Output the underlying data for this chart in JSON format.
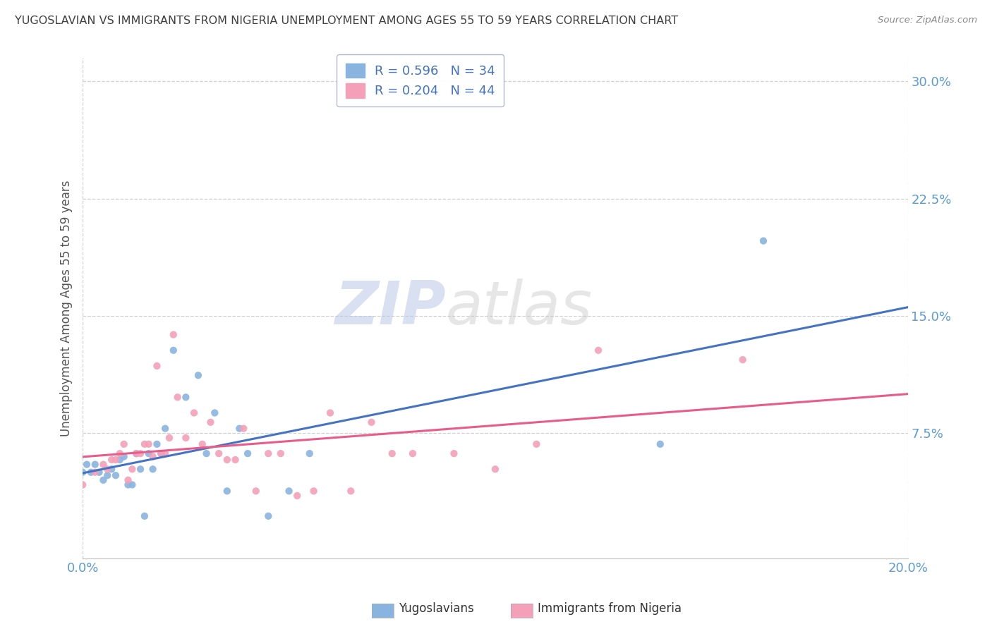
{
  "title": "YUGOSLAVIAN VS IMMIGRANTS FROM NIGERIA UNEMPLOYMENT AMONG AGES 55 TO 59 YEARS CORRELATION CHART",
  "source": "Source: ZipAtlas.com",
  "ylabel": "Unemployment Among Ages 55 to 59 years",
  "xlim": [
    0.0,
    0.2
  ],
  "ylim": [
    -0.005,
    0.315
  ],
  "yticks": [
    0.075,
    0.15,
    0.225,
    0.3
  ],
  "ytick_labels": [
    "7.5%",
    "15.0%",
    "22.5%",
    "30.0%"
  ],
  "xticks": [
    0.0,
    0.2
  ],
  "xtick_labels": [
    "0.0%",
    "20.0%"
  ],
  "series1_name": "Yugoslavians",
  "series1_color": "#8ab4e0",
  "series1_R": 0.596,
  "series1_N": 34,
  "series2_name": "Immigrants from Nigeria",
  "series2_color": "#f4a0b8",
  "series2_R": 0.204,
  "series2_N": 44,
  "line1_color": "#4472c4",
  "line2_color": "#e85c8a",
  "watermark_zip": "ZIP",
  "watermark_atlas": "atlas",
  "background_color": "#ffffff",
  "grid_color": "#d0d0d0",
  "title_color": "#404040",
  "axis_tick_color": "#5b9bd5",
  "series1_x": [
    0.0,
    0.001,
    0.002,
    0.003,
    0.004,
    0.005,
    0.006,
    0.007,
    0.008,
    0.009,
    0.01,
    0.011,
    0.012,
    0.013,
    0.014,
    0.015,
    0.016,
    0.017,
    0.018,
    0.019,
    0.02,
    0.022,
    0.025,
    0.028,
    0.03,
    0.032,
    0.035,
    0.038,
    0.04,
    0.045,
    0.05,
    0.055,
    0.14,
    0.165
  ],
  "series1_y": [
    0.05,
    0.055,
    0.05,
    0.055,
    0.05,
    0.045,
    0.048,
    0.052,
    0.048,
    0.058,
    0.06,
    0.042,
    0.042,
    0.062,
    0.052,
    0.022,
    0.062,
    0.052,
    0.068,
    0.062,
    0.078,
    0.128,
    0.098,
    0.112,
    0.062,
    0.088,
    0.038,
    0.078,
    0.062,
    0.022,
    0.038,
    0.062,
    0.068,
    0.198
  ],
  "series2_x": [
    0.0,
    0.003,
    0.005,
    0.006,
    0.007,
    0.008,
    0.009,
    0.01,
    0.011,
    0.012,
    0.013,
    0.014,
    0.015,
    0.016,
    0.017,
    0.018,
    0.019,
    0.02,
    0.021,
    0.022,
    0.023,
    0.025,
    0.027,
    0.029,
    0.031,
    0.033,
    0.035,
    0.037,
    0.039,
    0.042,
    0.045,
    0.048,
    0.052,
    0.056,
    0.06,
    0.065,
    0.07,
    0.075,
    0.08,
    0.09,
    0.1,
    0.11,
    0.125,
    0.16
  ],
  "series2_y": [
    0.042,
    0.05,
    0.055,
    0.052,
    0.058,
    0.058,
    0.062,
    0.068,
    0.045,
    0.052,
    0.062,
    0.062,
    0.068,
    0.068,
    0.06,
    0.118,
    0.062,
    0.062,
    0.072,
    0.138,
    0.098,
    0.072,
    0.088,
    0.068,
    0.082,
    0.062,
    0.058,
    0.058,
    0.078,
    0.038,
    0.062,
    0.062,
    0.035,
    0.038,
    0.088,
    0.038,
    0.082,
    0.062,
    0.062,
    0.062,
    0.052,
    0.068,
    0.128,
    0.122
  ],
  "line1_x_start": 0.0,
  "line1_x_end": 0.2,
  "line2_x_start": 0.0,
  "line2_x_end": 0.2
}
